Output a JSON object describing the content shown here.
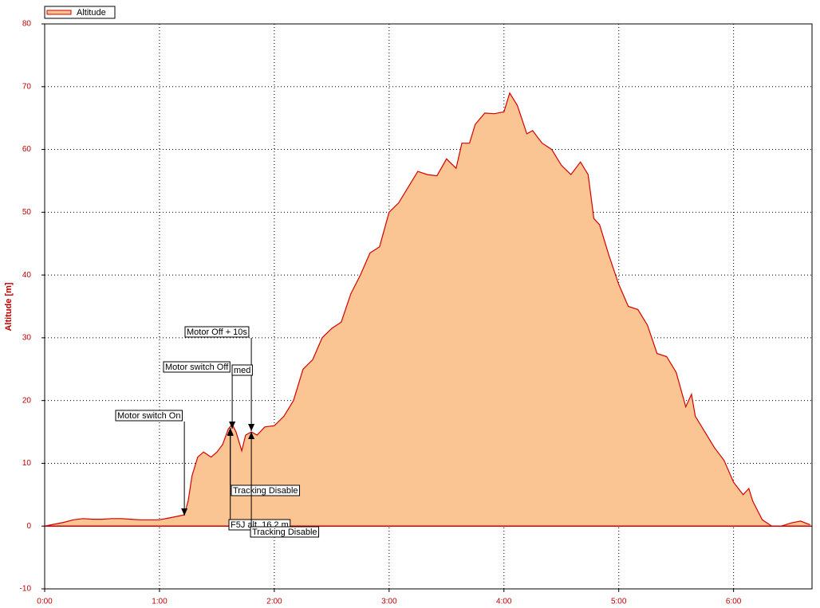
{
  "chart_data": {
    "type": "area",
    "y_label": "Altitude [m]",
    "legend_position": "upper left",
    "grid": true,
    "series": [
      {
        "name": "Altitude",
        "color": "#d40000",
        "fill": "#fbc593",
        "x": [
          0,
          5,
          10,
          15,
          20,
          25,
          30,
          35,
          40,
          45,
          50,
          55,
          60,
          65,
          70,
          73,
          75,
          77,
          80,
          83,
          87,
          90,
          93,
          96,
          98,
          100,
          103,
          105,
          108,
          111,
          115,
          120,
          125,
          130,
          135,
          140,
          145,
          150,
          155,
          160,
          165,
          170,
          175,
          180,
          185,
          190,
          195,
          200,
          205,
          210,
          215,
          218,
          222,
          225,
          230,
          235,
          240,
          243,
          247,
          252,
          255,
          260,
          265,
          270,
          275,
          280,
          284,
          287,
          290,
          295,
          300,
          305,
          310,
          315,
          320,
          325,
          330,
          335,
          338,
          340,
          345,
          350,
          355,
          360,
          365,
          368,
          370,
          375,
          380,
          385,
          390,
          395,
          400
        ],
        "values": [
          0,
          0.3,
          0.6,
          1.0,
          1.2,
          1.1,
          1.1,
          1.2,
          1.2,
          1.1,
          1.0,
          1.0,
          1.0,
          1.3,
          1.6,
          1.8,
          4,
          8,
          11,
          11.8,
          11,
          11.8,
          13,
          15.5,
          16.2,
          15,
          12,
          14.5,
          15,
          14.5,
          15.8,
          16,
          17.5,
          20,
          25,
          26.5,
          30,
          31.5,
          32.5,
          37,
          40,
          43.5,
          44.5,
          50,
          51.5,
          54,
          56.5,
          56,
          55.8,
          58.5,
          57,
          61,
          61,
          64,
          65.8,
          65.7,
          66,
          69,
          67,
          62.5,
          63,
          61,
          60,
          57.5,
          56,
          58,
          56,
          49,
          48,
          43,
          38.5,
          35,
          34.5,
          32,
          27.5,
          27,
          24.5,
          19,
          21,
          17.5,
          15,
          12.5,
          10.5,
          7,
          5,
          6,
          4,
          1,
          0,
          0,
          0.5,
          0.8,
          0.2
        ]
      }
    ],
    "xlim": [
      0,
      401
    ],
    "ylim": [
      -10,
      80
    ],
    "xticks": [
      {
        "value": 0,
        "label": "0:00"
      },
      {
        "value": 60,
        "label": "1:00"
      },
      {
        "value": 120,
        "label": "2:00"
      },
      {
        "value": 180,
        "label": "3:00"
      },
      {
        "value": 240,
        "label": "4:00"
      },
      {
        "value": 300,
        "label": "5:00"
      },
      {
        "value": 360,
        "label": "6:00"
      }
    ],
    "yticks": [
      -10,
      0,
      10,
      20,
      30,
      40,
      50,
      60,
      70,
      80
    ],
    "annotations": [
      {
        "text": "Motor switch On",
        "x": 73
      },
      {
        "text": "Motor switch Off",
        "x": 98
      },
      {
        "text": "Motor Off + 10s",
        "x": 108
      },
      {
        "text": "med",
        "x": 108
      },
      {
        "text": "Tracking Disable",
        "x": 97
      },
      {
        "text": "F5J alt. 16,2 m",
        "x": 97
      },
      {
        "text": "Tracking Disable",
        "x": 108
      }
    ]
  }
}
